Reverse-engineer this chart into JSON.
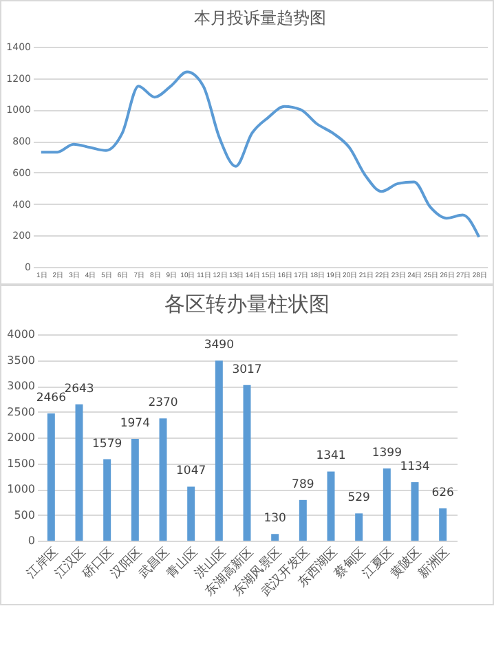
{
  "chart_data": [
    {
      "type": "line",
      "title": "本月投诉量趋势图",
      "categories": [
        "1日",
        "2日",
        "3日",
        "4日",
        "5日",
        "6日",
        "7日",
        "8日",
        "9日",
        "10日",
        "11日",
        "12日",
        "13日",
        "14日",
        "15日",
        "16日",
        "17日",
        "18日",
        "19日",
        "20日",
        "21日",
        "22日",
        "23日",
        "24日",
        "25日",
        "26日",
        "27日",
        "28日"
      ],
      "series": [
        {
          "color": "#5b9bd5",
          "values": [
            730,
            730,
            780,
            760,
            740,
            850,
            1150,
            1080,
            1150,
            1240,
            1150,
            820,
            640,
            850,
            950,
            1020,
            1000,
            910,
            850,
            760,
            580,
            480,
            530,
            540,
            380,
            310,
            330,
            190
          ]
        }
      ],
      "ylim": [
        0,
        1400
      ],
      "yticks": [
        0,
        200,
        400,
        600,
        800,
        1000,
        1200,
        1400
      ],
      "grid": "y",
      "marker": "none",
      "line_style": "solid",
      "legend": false
    },
    {
      "type": "bar",
      "title": "各区转办量柱状图",
      "categories": [
        "江岸区",
        "江汉区",
        "硚口区",
        "汉阳区",
        "武昌区",
        "青山区",
        "洪山区",
        "东湖高新区",
        "东湖风景区",
        "武汉开发区",
        "东西湖区",
        "蔡甸区",
        "江夏区",
        "黄陂区",
        "新洲区"
      ],
      "series": [
        {
          "color": "#5b9bd5",
          "values": [
            2466,
            2643,
            1579,
            1974,
            2370,
            1047,
            3490,
            3017,
            130,
            789,
            1341,
            529,
            1399,
            1134,
            626
          ]
        }
      ],
      "ylim": [
        0,
        4000
      ],
      "yticks": [
        0,
        500,
        1000,
        1500,
        2000,
        2500,
        3000,
        3500,
        4000
      ],
      "grid": "y",
      "data_labels": true,
      "legend": false
    }
  ]
}
